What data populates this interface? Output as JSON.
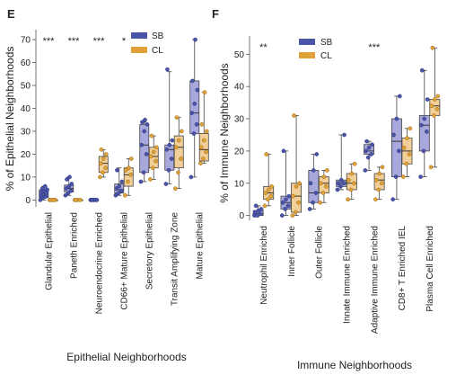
{
  "colors": {
    "SB": "#4b55a8",
    "SB_box": "#a9a8dc",
    "CL": "#e0a238",
    "CL_box": "#f2cf98"
  },
  "chart_data": [
    {
      "panel_label": "E",
      "type": "box",
      "ylabel": "% of Epithelial Neighborhoods",
      "xlabel": "Epithelial Neighborhoods",
      "ylim": [
        -3,
        72
      ],
      "yticks": [
        0,
        10,
        20,
        30,
        40,
        50,
        60,
        70
      ],
      "legend": {
        "placement": "top-center",
        "entries": [
          "SB",
          "CL"
        ]
      },
      "categories": [
        "Glandular Epithelial",
        "Paneth Enriched",
        "Neuroendocrine Enriched",
        "CD66+ Mature Epithelial",
        "Secretory Epithelial",
        "Transit Amplifying Zone",
        "Mature Epithelial"
      ],
      "significance": [
        "***",
        "***",
        "***",
        "*",
        "",
        "",
        ""
      ],
      "series": [
        {
          "name": "SB",
          "boxes": [
            {
              "q1": 1,
              "median": 2.5,
              "q3": 4.5,
              "whislo": 0,
              "whishi": 6
            },
            {
              "q1": 3.5,
              "median": 5,
              "q3": 6.5,
              "whislo": 2,
              "whishi": 10
            },
            {
              "q1": 0,
              "median": 0,
              "q3": 0,
              "whislo": 0,
              "whishi": 0
            },
            {
              "q1": 3,
              "median": 4.5,
              "q3": 7,
              "whislo": 2,
              "whishi": 14
            },
            {
              "q1": 12,
              "median": 24,
              "q3": 33,
              "whislo": 8,
              "whishi": 34
            },
            {
              "q1": 13,
              "median": 22,
              "q3": 24,
              "whislo": 7,
              "whishi": 56
            },
            {
              "q1": 29,
              "median": 38,
              "q3": 52,
              "whislo": 10,
              "whishi": 70
            }
          ],
          "points": [
            [
              0,
              1,
              1.5,
              2,
              2.5,
              3,
              3.5,
              4,
              4.5,
              5,
              6
            ],
            [
              2,
              3,
              4,
              5,
              6,
              7,
              9,
              10
            ],
            [
              0,
              0,
              0,
              0,
              0,
              0,
              0
            ],
            [
              2,
              3,
              4,
              5,
              6,
              8,
              13
            ],
            [
              8,
              12,
              20,
              24,
              30,
              33,
              34,
              35
            ],
            [
              7,
              13,
              18,
              22,
              24,
              26,
              57
            ],
            [
              10,
              29,
              33,
              38,
              42,
              48,
              52,
              70
            ]
          ]
        },
        {
          "name": "CL",
          "boxes": [
            {
              "q1": 0,
              "median": 0,
              "q3": 0,
              "whislo": 0,
              "whishi": 0
            },
            {
              "q1": 0,
              "median": 0,
              "q3": 0,
              "whislo": 0,
              "whishi": 0
            },
            {
              "q1": 12,
              "median": 16,
              "q3": 19,
              "whislo": 10,
              "whishi": 22
            },
            {
              "q1": 6,
              "median": 11,
              "q3": 14,
              "whislo": 2,
              "whishi": 18
            },
            {
              "q1": 14,
              "median": 19,
              "q3": 23,
              "whislo": 9,
              "whishi": 28
            },
            {
              "q1": 14,
              "median": 23,
              "q3": 28,
              "whislo": 5,
              "whishi": 36
            },
            {
              "q1": 17,
              "median": 22,
              "q3": 29,
              "whislo": 16,
              "whishi": 47
            }
          ],
          "points": [
            [
              0,
              0,
              0,
              0,
              0
            ],
            [
              0,
              0,
              0,
              0
            ],
            [
              10,
              12,
              14,
              16,
              18,
              20,
              22
            ],
            [
              2,
              8,
              11,
              13,
              14,
              18
            ],
            [
              9,
              14,
              17,
              19,
              21,
              23,
              28
            ],
            [
              5,
              12,
              18,
              23,
              26,
              30,
              36
            ],
            [
              16,
              18,
              21,
              23,
              26,
              30,
              33,
              47
            ]
          ]
        }
      ]
    },
    {
      "panel_label": "F",
      "type": "box",
      "ylabel": "% of Immune Neighborhoods",
      "xlabel": "Immune Neighborhoods",
      "ylim": [
        -1.5,
        54
      ],
      "yticks": [
        0,
        10,
        20,
        30,
        40,
        50
      ],
      "legend": {
        "placement": "top-center",
        "entries": [
          "SB",
          "CL"
        ]
      },
      "categories": [
        "Neutrophil Enriched",
        "Inner Follicle",
        "Outer Follicle",
        "Innate Immune Enriched",
        "Adaptive Immune Enriched",
        "CD8+ T Enriched IEL",
        "Plasma Cell Enriched"
      ],
      "significance": [
        "**",
        "",
        "",
        "",
        "***",
        "",
        ""
      ],
      "series": [
        {
          "name": "SB",
          "boxes": [
            {
              "q1": 0,
              "median": 0.5,
              "q3": 1.5,
              "whislo": 0,
              "whishi": 3
            },
            {
              "q1": 2,
              "median": 4,
              "q3": 6,
              "whislo": 0,
              "whishi": 20
            },
            {
              "q1": 4,
              "median": 7,
              "q3": 14,
              "whislo": 2,
              "whishi": 19
            },
            {
              "q1": 9,
              "median": 10,
              "q3": 11,
              "whislo": 8,
              "whishi": 25
            },
            {
              "q1": 19,
              "median": 20,
              "q3": 22,
              "whislo": 14,
              "whishi": 23
            },
            {
              "q1": 12,
              "median": 23,
              "q3": 30,
              "whislo": 5,
              "whishi": 37
            },
            {
              "q1": 20,
              "median": 28,
              "q3": 31,
              "whislo": 12,
              "whishi": 45
            }
          ],
          "points": [
            [
              0,
              0,
              0.5,
              1,
              1.5,
              2,
              3
            ],
            [
              0,
              2,
              3,
              4,
              5,
              6,
              20
            ],
            [
              2,
              4,
              7,
              10,
              14,
              19
            ],
            [
              8,
              9,
              10,
              10,
              11,
              25
            ],
            [
              14,
              18,
              19,
              20,
              21,
              22,
              23
            ],
            [
              5,
              12,
              20,
              25,
              30,
              37
            ],
            [
              12,
              20,
              26,
              28,
              30,
              36,
              45
            ]
          ]
        },
        {
          "name": "CL",
          "boxes": [
            {
              "q1": 5,
              "median": 7,
              "q3": 9,
              "whislo": 3,
              "whishi": 19
            },
            {
              "q1": 1,
              "median": 6,
              "q3": 10,
              "whislo": 0,
              "whishi": 31
            },
            {
              "q1": 7,
              "median": 10,
              "q3": 12,
              "whislo": 4,
              "whishi": 14
            },
            {
              "q1": 8,
              "median": 10,
              "q3": 13,
              "whislo": 5,
              "whishi": 16
            },
            {
              "q1": 8,
              "median": 11,
              "q3": 13,
              "whislo": 5,
              "whishi": 15
            },
            {
              "q1": 16,
              "median": 20,
              "q3": 24,
              "whislo": 12,
              "whishi": 27
            },
            {
              "q1": 31,
              "median": 34,
              "q3": 36,
              "whislo": 15,
              "whishi": 52
            }
          ],
          "points": [
            [
              3,
              5,
              6,
              7,
              8,
              9,
              19
            ],
            [
              0,
              1,
              4,
              6,
              9,
              10,
              31
            ],
            [
              4,
              7,
              9,
              10,
              12,
              14
            ],
            [
              5,
              8,
              10,
              11,
              13,
              16
            ],
            [
              5,
              8,
              10,
              11,
              13,
              15
            ],
            [
              12,
              16,
              19,
              21,
              24,
              27
            ],
            [
              15,
              31,
              33,
              34,
              36,
              37,
              52
            ]
          ]
        }
      ]
    }
  ]
}
